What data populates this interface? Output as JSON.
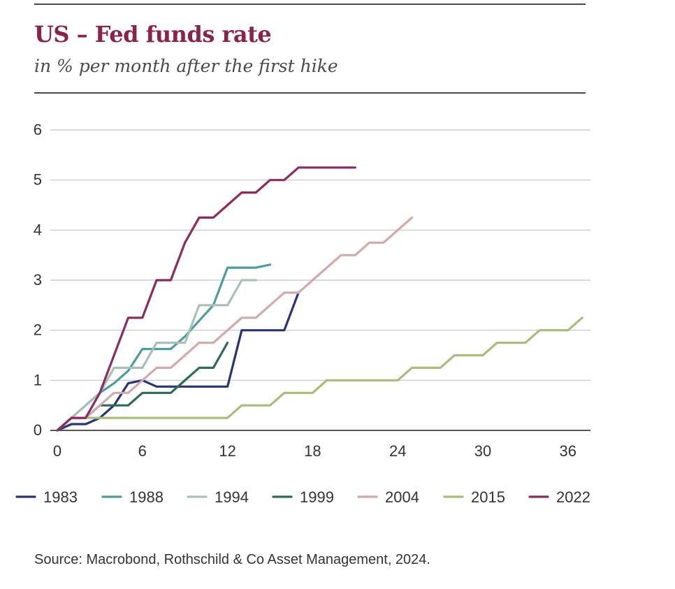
{
  "header": {
    "title": "US – Fed funds rate",
    "subtitle": "in % per month after the first hike"
  },
  "footer": {
    "source": "Source: Macrobond, Rothschild & Co Asset Management, 2024."
  },
  "chart_data": {
    "type": "line",
    "title": "US – Fed funds rate",
    "subtitle": "in % per month after the first hike",
    "xlabel": "",
    "ylabel": "",
    "xlim": [
      0,
      37.5
    ],
    "ylim": [
      0,
      6
    ],
    "x_ticks": [
      0,
      6,
      12,
      18,
      24,
      30,
      36
    ],
    "y_ticks": [
      0,
      1,
      2,
      3,
      4,
      5,
      6
    ],
    "grid": "horizontal",
    "legend_position": "bottom",
    "series": [
      {
        "name": "1983",
        "color": "#27347a",
        "x": [
          0,
          1,
          2,
          3,
          4,
          5,
          6,
          7,
          8,
          9,
          10,
          11,
          12,
          13,
          14,
          15,
          16,
          17
        ],
        "y": [
          0,
          0.125,
          0.125,
          0.25,
          0.5,
          0.94,
          1.0,
          0.875,
          0.875,
          0.875,
          0.875,
          0.875,
          0.875,
          2.0,
          2.0,
          2.0,
          2.0,
          2.75
        ]
      },
      {
        "name": "1988",
        "color": "#4a9e9e",
        "x": [
          0,
          1,
          2,
          3,
          4,
          5,
          6,
          7,
          8,
          9,
          10,
          11,
          12,
          13,
          14,
          15
        ],
        "y": [
          0,
          0.25,
          0.5,
          0.75,
          0.94,
          1.19,
          1.625,
          1.625,
          1.625,
          1.875,
          2.19,
          2.5,
          3.25,
          3.25,
          3.25,
          3.31
        ]
      },
      {
        "name": "1994",
        "color": "#a9c0b8",
        "x": [
          0,
          1,
          2,
          3,
          4,
          5,
          6,
          7,
          8,
          9,
          10,
          11,
          12,
          13,
          14
        ],
        "y": [
          0,
          0.25,
          0.5,
          0.75,
          1.25,
          1.25,
          1.25,
          1.75,
          1.75,
          1.75,
          2.5,
          2.5,
          2.5,
          3.0,
          3.0
        ]
      },
      {
        "name": "1999",
        "color": "#2e6b56",
        "x": [
          0,
          1,
          2,
          3,
          4,
          5,
          6,
          7,
          8,
          9,
          10,
          11,
          12
        ],
        "y": [
          0,
          0.25,
          0.25,
          0.5,
          0.5,
          0.5,
          0.75,
          0.75,
          0.75,
          1.0,
          1.25,
          1.25,
          1.75
        ]
      },
      {
        "name": "2004",
        "color": "#d2aaa9",
        "x": [
          0,
          1,
          2,
          3,
          4,
          5,
          6,
          7,
          8,
          9,
          10,
          11,
          12,
          13,
          14,
          15,
          16,
          17,
          18,
          19,
          20,
          21,
          22,
          23,
          24,
          25
        ],
        "y": [
          0,
          0.25,
          0.25,
          0.5,
          0.75,
          0.75,
          1.0,
          1.25,
          1.25,
          1.5,
          1.75,
          1.75,
          2.0,
          2.25,
          2.25,
          2.5,
          2.75,
          2.75,
          3.0,
          3.25,
          3.5,
          3.5,
          3.75,
          3.75,
          4.0,
          4.25
        ]
      },
      {
        "name": "2015",
        "color": "#a9bd78",
        "x": [
          0,
          1,
          2,
          3,
          4,
          5,
          6,
          7,
          8,
          9,
          10,
          11,
          12,
          13,
          14,
          15,
          16,
          17,
          18,
          19,
          20,
          21,
          22,
          23,
          24,
          25,
          26,
          27,
          28,
          29,
          30,
          31,
          32,
          33,
          34,
          35,
          36,
          37
        ],
        "y": [
          0,
          0.25,
          0.25,
          0.25,
          0.25,
          0.25,
          0.25,
          0.25,
          0.25,
          0.25,
          0.25,
          0.25,
          0.25,
          0.5,
          0.5,
          0.5,
          0.75,
          0.75,
          0.75,
          1.0,
          1.0,
          1.0,
          1.0,
          1.0,
          1.0,
          1.25,
          1.25,
          1.25,
          1.5,
          1.5,
          1.5,
          1.75,
          1.75,
          1.75,
          2.0,
          2.0,
          2.0,
          2.25
        ]
      },
      {
        "name": "2022",
        "color": "#8e2a5e",
        "x": [
          0,
          1,
          2,
          3,
          4,
          5,
          6,
          7,
          8,
          9,
          10,
          11,
          12,
          13,
          14,
          15,
          16,
          17,
          18,
          19,
          20,
          21
        ],
        "y": [
          0,
          0.25,
          0.25,
          0.75,
          1.5,
          2.25,
          2.25,
          3.0,
          3.0,
          3.75,
          4.25,
          4.25,
          4.5,
          4.75,
          4.75,
          5.0,
          5.0,
          5.25,
          5.25,
          5.25,
          5.25,
          5.25
        ]
      }
    ]
  }
}
